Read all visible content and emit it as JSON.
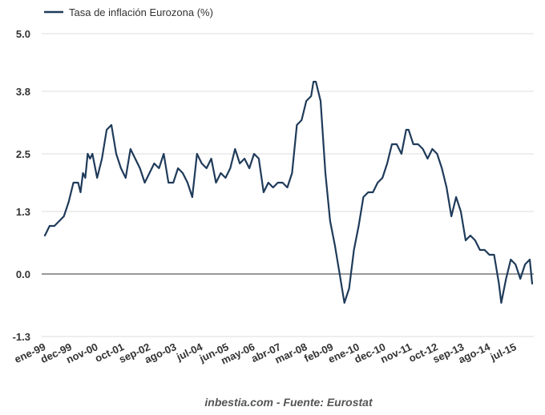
{
  "chart_data": {
    "type": "line",
    "title": "",
    "xlabel": "",
    "ylabel": "",
    "legend": {
      "label": "Tasa de inflación Eurozona (%)",
      "position": "top-left"
    },
    "source": "inbestia.com - Fuente: Eurostat",
    "ylim": [
      -1.3,
      5.0
    ],
    "y_ticks": [
      "5.0",
      "3.8",
      "2.5",
      "1.3",
      "0.0",
      "-1.3"
    ],
    "x_ticks": [
      "ene-99",
      "dec-99",
      "nov-00",
      "oct-01",
      "sep-02",
      "ago-03",
      "jul-04",
      "jun-05",
      "may-06",
      "abr-07",
      "mar-08",
      "feb-09",
      "ene-10",
      "dec-10",
      "nov-11",
      "oct-12",
      "sep-13",
      "ago-14",
      "jul-15"
    ],
    "grid": true,
    "colors": {
      "line": "#1f3b5a",
      "grid": "#dddddd",
      "zero_line": "#333333"
    },
    "series": [
      {
        "name": "Tasa de inflación Eurozona (%)",
        "points": [
          [
            "1999-01",
            0.8
          ],
          [
            "1999-03",
            1.0
          ],
          [
            "1999-05",
            1.0
          ],
          [
            "1999-07",
            1.1
          ],
          [
            "1999-09",
            1.2
          ],
          [
            "1999-11",
            1.5
          ],
          [
            "2000-01",
            1.9
          ],
          [
            "2000-03",
            1.9
          ],
          [
            "2000-04",
            1.7
          ],
          [
            "2000-05",
            2.1
          ],
          [
            "2000-06",
            2.0
          ],
          [
            "2000-07",
            2.5
          ],
          [
            "2000-08",
            2.4
          ],
          [
            "2000-09",
            2.5
          ],
          [
            "2000-11",
            2.0
          ],
          [
            "2001-01",
            2.4
          ],
          [
            "2001-03",
            3.0
          ],
          [
            "2001-05",
            3.1
          ],
          [
            "2001-07",
            2.5
          ],
          [
            "2001-09",
            2.2
          ],
          [
            "2001-11",
            2.0
          ],
          [
            "2002-01",
            2.6
          ],
          [
            "2002-03",
            2.4
          ],
          [
            "2002-05",
            2.2
          ],
          [
            "2002-07",
            1.9
          ],
          [
            "2002-09",
            2.1
          ],
          [
            "2002-11",
            2.3
          ],
          [
            "2003-01",
            2.2
          ],
          [
            "2003-03",
            2.5
          ],
          [
            "2003-05",
            1.9
          ],
          [
            "2003-07",
            1.9
          ],
          [
            "2003-09",
            2.2
          ],
          [
            "2003-11",
            2.1
          ],
          [
            "2004-01",
            1.9
          ],
          [
            "2004-03",
            1.6
          ],
          [
            "2004-05",
            2.5
          ],
          [
            "2004-07",
            2.3
          ],
          [
            "2004-09",
            2.2
          ],
          [
            "2004-11",
            2.4
          ],
          [
            "2005-01",
            1.9
          ],
          [
            "2005-03",
            2.1
          ],
          [
            "2005-05",
            2.0
          ],
          [
            "2005-07",
            2.2
          ],
          [
            "2005-09",
            2.6
          ],
          [
            "2005-11",
            2.3
          ],
          [
            "2006-01",
            2.4
          ],
          [
            "2006-03",
            2.2
          ],
          [
            "2006-05",
            2.5
          ],
          [
            "2006-07",
            2.4
          ],
          [
            "2006-09",
            1.7
          ],
          [
            "2006-11",
            1.9
          ],
          [
            "2007-01",
            1.8
          ],
          [
            "2007-03",
            1.9
          ],
          [
            "2007-05",
            1.9
          ],
          [
            "2007-07",
            1.8
          ],
          [
            "2007-09",
            2.1
          ],
          [
            "2007-11",
            3.1
          ],
          [
            "2008-01",
            3.2
          ],
          [
            "2008-03",
            3.6
          ],
          [
            "2008-05",
            3.7
          ],
          [
            "2008-06",
            4.0
          ],
          [
            "2008-07",
            4.0
          ],
          [
            "2008-09",
            3.6
          ],
          [
            "2008-11",
            2.1
          ],
          [
            "2009-01",
            1.1
          ],
          [
            "2009-03",
            0.6
          ],
          [
            "2009-05",
            0.0
          ],
          [
            "2009-07",
            -0.6
          ],
          [
            "2009-09",
            -0.3
          ],
          [
            "2009-11",
            0.5
          ],
          [
            "2010-01",
            1.0
          ],
          [
            "2010-03",
            1.6
          ],
          [
            "2010-05",
            1.7
          ],
          [
            "2010-07",
            1.7
          ],
          [
            "2010-09",
            1.9
          ],
          [
            "2010-11",
            2.0
          ],
          [
            "2011-01",
            2.3
          ],
          [
            "2011-03",
            2.7
          ],
          [
            "2011-05",
            2.7
          ],
          [
            "2011-07",
            2.5
          ],
          [
            "2011-09",
            3.0
          ],
          [
            "2011-10",
            3.0
          ],
          [
            "2011-12",
            2.7
          ],
          [
            "2012-02",
            2.7
          ],
          [
            "2012-04",
            2.6
          ],
          [
            "2012-06",
            2.4
          ],
          [
            "2012-08",
            2.6
          ],
          [
            "2012-10",
            2.5
          ],
          [
            "2012-12",
            2.2
          ],
          [
            "2013-02",
            1.8
          ],
          [
            "2013-04",
            1.2
          ],
          [
            "2013-06",
            1.6
          ],
          [
            "2013-08",
            1.3
          ],
          [
            "2013-10",
            0.7
          ],
          [
            "2013-12",
            0.8
          ],
          [
            "2014-02",
            0.7
          ],
          [
            "2014-04",
            0.5
          ],
          [
            "2014-06",
            0.5
          ],
          [
            "2014-08",
            0.4
          ],
          [
            "2014-10",
            0.4
          ],
          [
            "2014-12",
            -0.2
          ],
          [
            "2015-01",
            -0.6
          ],
          [
            "2015-03",
            -0.1
          ],
          [
            "2015-05",
            0.3
          ],
          [
            "2015-07",
            0.2
          ],
          [
            "2015-09",
            -0.1
          ],
          [
            "2015-11",
            0.2
          ],
          [
            "2016-01",
            0.3
          ],
          [
            "2016-02",
            -0.2
          ]
        ]
      }
    ]
  }
}
